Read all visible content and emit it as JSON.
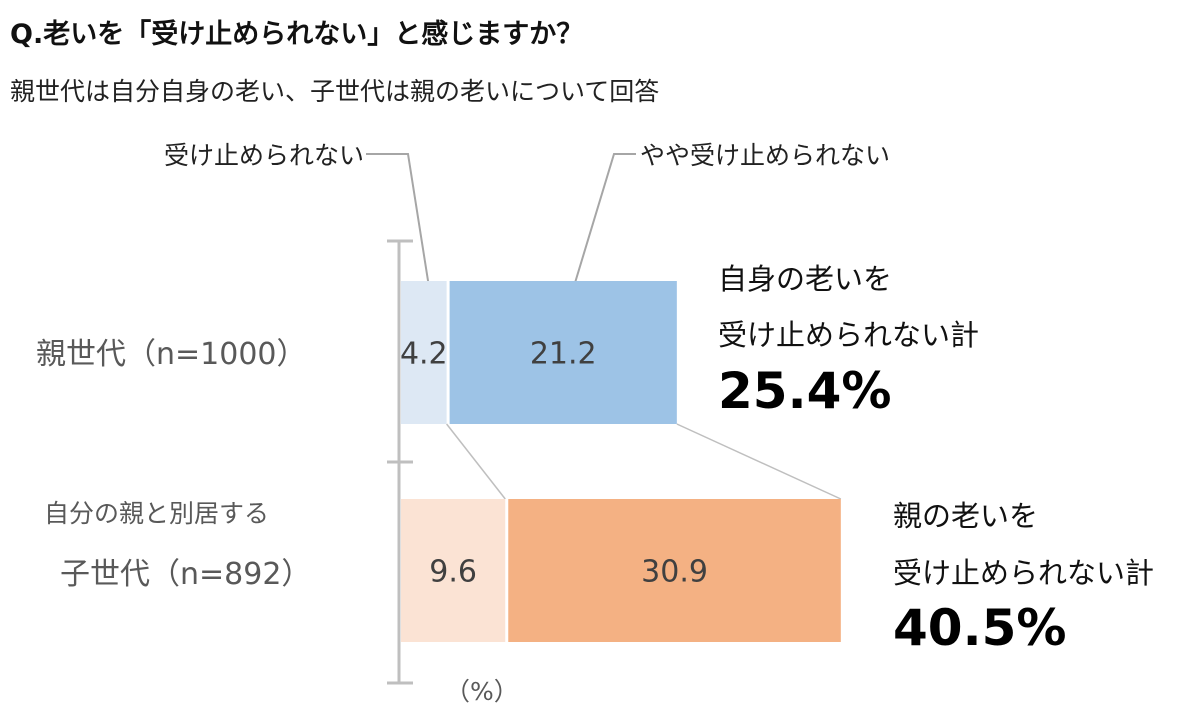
{
  "header": {
    "title": "Q.老いを「受け止められない」と感じますか？",
    "subtitle": "親世代は自分自身の老い、子世代は親の老いについて回答"
  },
  "chart_data": {
    "type": "bar",
    "orientation": "horizontal",
    "stacked": true,
    "unit_label": "（%）",
    "categories": [
      {
        "label": "親世代（n=1000）",
        "sublabel": ""
      },
      {
        "label": "子世代（n=892）",
        "sublabel": "自分の親と別居する"
      }
    ],
    "series": [
      {
        "name": "受け止められない",
        "values": [
          4.2,
          9.6
        ],
        "colors": [
          "#dde8f4",
          "#fbe3d4"
        ]
      },
      {
        "name": "やや受け止められない",
        "values": [
          21.2,
          30.9
        ],
        "colors": [
          "#9dc3e6",
          "#f4b183"
        ]
      }
    ],
    "totals": [
      {
        "label_lines": [
          "自身の老いを",
          "受け止められない計"
        ],
        "value": "25.4%"
      },
      {
        "label_lines": [
          "親の老いを",
          "受け止められない計"
        ],
        "value": "40.5%"
      }
    ],
    "value_labels": [
      [
        "4.2",
        "21.2"
      ],
      [
        "9.6",
        "30.9"
      ]
    ],
    "grid": false
  }
}
